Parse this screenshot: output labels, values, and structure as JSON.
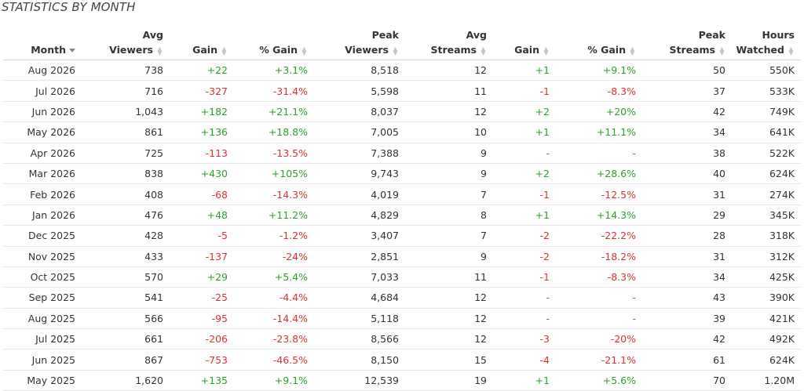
{
  "title": "STATISTICS BY MONTH",
  "headers": [
    {
      "line1": "",
      "line2": "Month"
    },
    {
      "line1": "Avg",
      "line2": "Viewers"
    },
    {
      "line1": "",
      "line2": "Gain"
    },
    {
      "line1": "",
      "line2": "% Gain"
    },
    {
      "line1": "Peak",
      "line2": "Viewers"
    },
    {
      "line1": "Avg",
      "line2": "Streams"
    },
    {
      "line1": "",
      "line2": "Gain"
    },
    {
      "line1": "",
      "line2": "% Gain"
    },
    {
      "line1": "Peak",
      "line2": "Streams"
    },
    {
      "line1": "Hours",
      "line2": "Watched"
    }
  ],
  "colors": {
    "positive": "#2e9e2e",
    "negative": "#e03131"
  },
  "rows": [
    [
      "Aug 2026",
      "738",
      "+22",
      "+3.1%",
      "8,518",
      "12",
      "+1",
      "+9.1%",
      "50",
      "550K"
    ],
    [
      "Jul 2026",
      "716",
      "-327",
      "-31.4%",
      "5,598",
      "11",
      "-1",
      "-8.3%",
      "37",
      "533K"
    ],
    [
      "Jun 2026",
      "1,043",
      "+182",
      "+21.1%",
      "8,037",
      "12",
      "+2",
      "+20%",
      "42",
      "749K"
    ],
    [
      "May 2026",
      "861",
      "+136",
      "+18.8%",
      "7,005",
      "10",
      "+1",
      "+11.1%",
      "34",
      "641K"
    ],
    [
      "Apr 2026",
      "725",
      "-113",
      "-13.5%",
      "7,388",
      "9",
      "-",
      "-",
      "38",
      "522K"
    ],
    [
      "Mar 2026",
      "838",
      "+430",
      "+105%",
      "9,743",
      "9",
      "+2",
      "+28.6%",
      "40",
      "624K"
    ],
    [
      "Feb 2026",
      "408",
      "-68",
      "-14.3%",
      "4,019",
      "7",
      "-1",
      "-12.5%",
      "31",
      "274K"
    ],
    [
      "Jan 2026",
      "476",
      "+48",
      "+11.2%",
      "4,829",
      "8",
      "+1",
      "+14.3%",
      "29",
      "345K"
    ],
    [
      "Dec 2025",
      "428",
      "-5",
      "-1.2%",
      "3,407",
      "7",
      "-2",
      "-22.2%",
      "28",
      "318K"
    ],
    [
      "Nov 2025",
      "433",
      "-137",
      "-24%",
      "2,851",
      "9",
      "-2",
      "-18.2%",
      "31",
      "312K"
    ],
    [
      "Oct 2025",
      "570",
      "+29",
      "+5.4%",
      "7,033",
      "11",
      "-1",
      "-8.3%",
      "34",
      "425K"
    ],
    [
      "Sep 2025",
      "541",
      "-25",
      "-4.4%",
      "4,684",
      "12",
      "-",
      "-",
      "43",
      "390K"
    ],
    [
      "Aug 2025",
      "566",
      "-95",
      "-14.4%",
      "5,118",
      "12",
      "-",
      "-",
      "39",
      "421K"
    ],
    [
      "Jul 2025",
      "661",
      "-206",
      "-23.8%",
      "8,566",
      "12",
      "-3",
      "-20%",
      "42",
      "492K"
    ],
    [
      "Jun 2025",
      "867",
      "-753",
      "-46.5%",
      "8,150",
      "15",
      "-4",
      "-21.1%",
      "61",
      "624K"
    ],
    [
      "May 2025",
      "1,620",
      "+135",
      "+9.1%",
      "12,539",
      "19",
      "+1",
      "+5.6%",
      "70",
      "1.20M"
    ]
  ]
}
